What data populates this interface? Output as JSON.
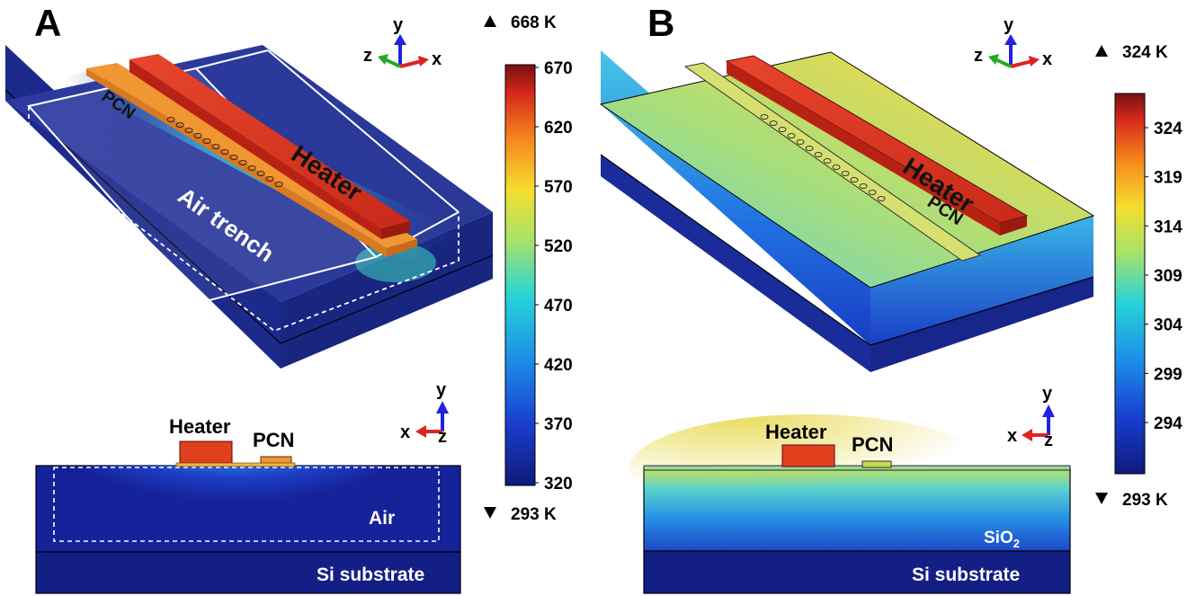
{
  "panel_a": {
    "letter": "A",
    "labels": {
      "pcn": "PCN",
      "heater": "Heater",
      "air_trench": "Air trench"
    },
    "cross_section": {
      "heater": "Heater",
      "pcn": "PCN",
      "air": "Air",
      "substrate": "Si substrate"
    },
    "axes_3d": {
      "y": "y",
      "z": "z",
      "x": "x"
    },
    "axes_2d": {
      "y": "y",
      "x": "x",
      "z": "z"
    },
    "max_marker": "668 K",
    "min_marker": "293 K",
    "colorbar": {
      "ticks": [
        "670",
        "620",
        "570",
        "520",
        "470",
        "420",
        "370",
        "320"
      ]
    }
  },
  "panel_b": {
    "letter": "B",
    "labels": {
      "heater": "Heater",
      "pcn": "PCN"
    },
    "cross_section": {
      "heater": "Heater",
      "pcn": "PCN",
      "sio2_base": "SiO",
      "sio2_sub": "2",
      "substrate": "Si substrate"
    },
    "axes_3d": {
      "y": "y",
      "z": "z",
      "x": "x"
    },
    "axes_2d": {
      "y": "y",
      "x": "x",
      "z": "z"
    },
    "max_marker": "324 K",
    "min_marker": "293 K",
    "colorbar": {
      "ticks": [
        "324",
        "319",
        "314",
        "309",
        "304",
        "299",
        "294"
      ]
    }
  },
  "colors": {
    "heater": "#e23a1e",
    "pcn_hot": "#f28a2a",
    "base_dark": "#1a2a8a"
  }
}
